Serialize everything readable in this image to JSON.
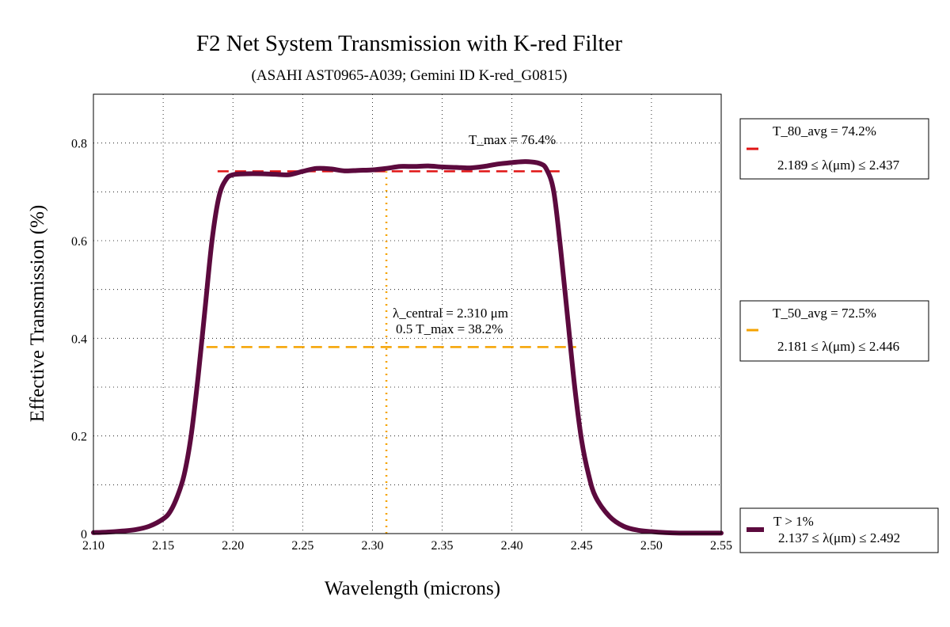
{
  "chart_data": {
    "type": "line",
    "title": "F2 Net System Transmission with K-red Filter",
    "subtitle": "(ASAHI AST0965-A039; Gemini ID K-red_G0815)",
    "xlabel": "Wavelength (microns)",
    "ylabel": "Effective Transmission (%)",
    "xlim": [
      2.1,
      2.55
    ],
    "ylim": [
      0,
      0.9
    ],
    "grid": true,
    "x_ticks": [
      "2.10",
      "2.15",
      "2.20",
      "2.25",
      "2.30",
      "2.35",
      "2.40",
      "2.45",
      "2.50",
      "2.55"
    ],
    "y_ticks": [
      "0",
      "0.2",
      "0.4",
      "0.6",
      "0.8"
    ],
    "series": [
      {
        "name": "T > 1%",
        "color": "#5c0a3e",
        "x": [
          2.1,
          2.11,
          2.12,
          2.13,
          2.14,
          2.15,
          2.155,
          2.16,
          2.165,
          2.17,
          2.175,
          2.18,
          2.185,
          2.19,
          2.195,
          2.2,
          2.21,
          2.22,
          2.23,
          2.24,
          2.25,
          2.26,
          2.27,
          2.28,
          2.29,
          2.3,
          2.31,
          2.32,
          2.33,
          2.34,
          2.35,
          2.36,
          2.37,
          2.38,
          2.39,
          2.4,
          2.41,
          2.42,
          2.425,
          2.43,
          2.435,
          2.44,
          2.445,
          2.45,
          2.455,
          2.46,
          2.47,
          2.48,
          2.49,
          2.5,
          2.51,
          2.52,
          2.53,
          2.54,
          2.55
        ],
        "y": [
          0.002,
          0.003,
          0.005,
          0.008,
          0.015,
          0.03,
          0.045,
          0.075,
          0.12,
          0.2,
          0.32,
          0.46,
          0.6,
          0.69,
          0.725,
          0.735,
          0.737,
          0.737,
          0.736,
          0.735,
          0.742,
          0.748,
          0.747,
          0.743,
          0.744,
          0.745,
          0.748,
          0.752,
          0.752,
          0.753,
          0.751,
          0.75,
          0.749,
          0.752,
          0.757,
          0.76,
          0.762,
          0.758,
          0.745,
          0.7,
          0.58,
          0.44,
          0.3,
          0.19,
          0.12,
          0.075,
          0.035,
          0.015,
          0.007,
          0.004,
          0.002,
          0.001,
          0.001,
          0.001,
          0.001
        ]
      }
    ],
    "reference_lines": [
      {
        "name": "T_80_avg",
        "color": "#e01414",
        "y": 0.742,
        "x_start": 2.189,
        "x_end": 2.437
      },
      {
        "name": "T_50_avg",
        "color": "#f5a300",
        "y": 0.382,
        "x_start": 2.181,
        "x_end": 2.446
      },
      {
        "name": "lambda_central",
        "color": "#f5a300",
        "x": 2.31,
        "y_start": 0,
        "y_end": 0.742
      }
    ],
    "annotations": {
      "tmax": "T_max = 76.4%",
      "central": "λ_central = 2.310 μm",
      "half": "0.5 T_max = 38.2%"
    },
    "legend": [
      {
        "line1": "T_80_avg = 74.2%",
        "line2": "2.189 ≤ λ(μm) ≤ 2.437",
        "color": "#e01414",
        "style": "dashed"
      },
      {
        "line1": "T_50_avg = 72.5%",
        "line2": "2.181 ≤ λ(μm) ≤ 2.446",
        "color": "#f5a300",
        "style": "dashed"
      },
      {
        "line1": "T > 1%",
        "line2": "2.137 ≤ λ(μm) ≤ 2.492",
        "color": "#5c0a3e",
        "style": "solid"
      }
    ],
    "legend_placement": "right"
  }
}
